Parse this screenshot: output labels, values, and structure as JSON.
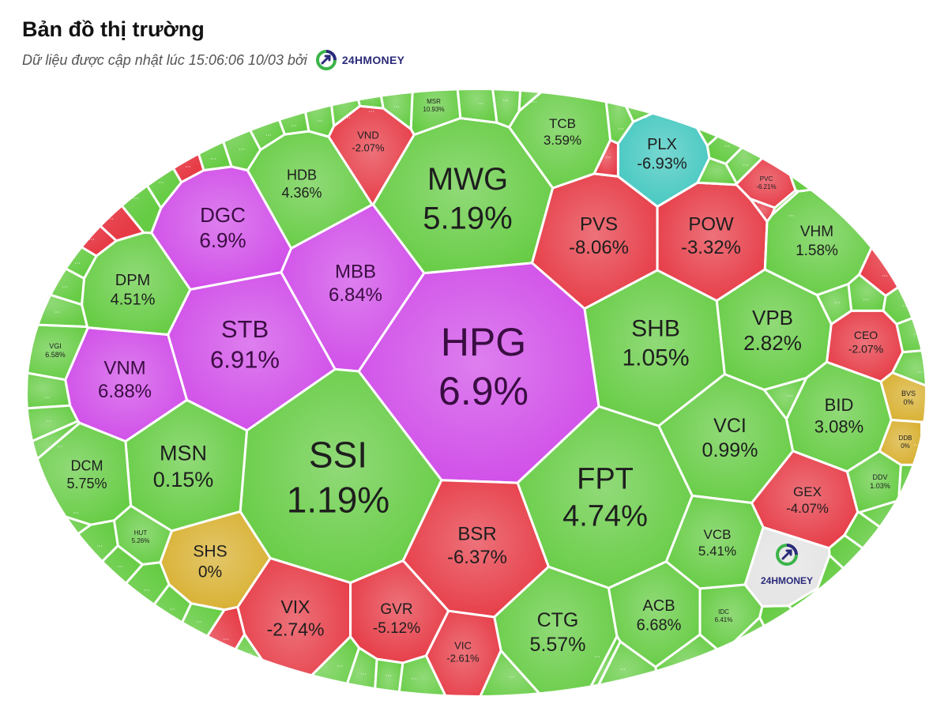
{
  "header": {
    "title": "Bản đồ thị trường",
    "subtitle": "Dữ liệu được cập nhật lúc 15:06:06 10/03 bởi",
    "logo_text": "24HMONEY"
  },
  "colors": {
    "up": "#66cc44",
    "down": "#e63b46",
    "ceiling": "#d04de8",
    "floor": "#44c8c0",
    "reference": "#d8b030",
    "logo_cell": "#e4e4e4",
    "border": "#ffffff"
  },
  "watermark_text": "24HMONEY",
  "more_label": "...",
  "chart_data": {
    "type": "treemap",
    "cells": [
      {
        "ticker": "HPG",
        "change": "6.9%",
        "status": "ceiling"
      },
      {
        "ticker": "SSI",
        "change": "1.19%",
        "status": "up"
      },
      {
        "ticker": "MWG",
        "change": "5.19%",
        "status": "up"
      },
      {
        "ticker": "FPT",
        "change": "4.74%",
        "status": "up"
      },
      {
        "ticker": "SHB",
        "change": "1.05%",
        "status": "up"
      },
      {
        "ticker": "STB",
        "change": "6.91%",
        "status": "ceiling"
      },
      {
        "ticker": "MBB",
        "change": "6.84%",
        "status": "ceiling"
      },
      {
        "ticker": "DGC",
        "change": "6.9%",
        "status": "ceiling"
      },
      {
        "ticker": "VNM",
        "change": "6.88%",
        "status": "ceiling"
      },
      {
        "ticker": "MSN",
        "change": "0.15%",
        "status": "up"
      },
      {
        "ticker": "BSR",
        "change": "-6.37%",
        "status": "down"
      },
      {
        "ticker": "PVS",
        "change": "-8.06%",
        "status": "down"
      },
      {
        "ticker": "POW",
        "change": "-3.32%",
        "status": "down"
      },
      {
        "ticker": "VPB",
        "change": "2.82%",
        "status": "up"
      },
      {
        "ticker": "VCI",
        "change": "0.99%",
        "status": "up"
      },
      {
        "ticker": "CTG",
        "change": "5.57%",
        "status": "up"
      },
      {
        "ticker": "VIX",
        "change": "-2.74%",
        "status": "down"
      },
      {
        "ticker": "HDB",
        "change": "4.36%",
        "status": "up"
      },
      {
        "ticker": "TCB",
        "change": "3.59%",
        "status": "up"
      },
      {
        "ticker": "VHM",
        "change": "1.58%",
        "status": "up"
      },
      {
        "ticker": "BID",
        "change": "3.08%",
        "status": "up"
      },
      {
        "ticker": "DPM",
        "change": "4.51%",
        "status": "up"
      },
      {
        "ticker": "DCM",
        "change": "5.75%",
        "status": "up"
      },
      {
        "ticker": "GVR",
        "change": "-5.12%",
        "status": "down"
      },
      {
        "ticker": "ACB",
        "change": "6.68%",
        "status": "up"
      },
      {
        "ticker": "VCB",
        "change": "5.41%",
        "status": "up"
      },
      {
        "ticker": "GEX",
        "change": "-4.07%",
        "status": "down"
      },
      {
        "ticker": "SHS",
        "change": "0%",
        "status": "reference"
      },
      {
        "ticker": "PLX",
        "change": "-6.93%",
        "status": "floor"
      },
      {
        "ticker": "VND",
        "change": "-2.07%",
        "status": "down"
      },
      {
        "ticker": "CEO",
        "change": "-2.07%",
        "status": "down"
      },
      {
        "ticker": "VIC",
        "change": "-2.61%",
        "status": "down"
      },
      {
        "ticker": "MSR",
        "change": "10.93%",
        "status": "up"
      },
      {
        "ticker": "PVC",
        "change": "-6.21%",
        "status": "down"
      },
      {
        "ticker": "VGI",
        "change": "6.58%",
        "status": "up"
      },
      {
        "ticker": "HUT",
        "change": "5.26%",
        "status": "up"
      },
      {
        "ticker": "BVS",
        "change": "0%",
        "status": "reference"
      },
      {
        "ticker": "DDB",
        "change": "0%",
        "status": "reference"
      },
      {
        "ticker": "DDV",
        "change": "1.03%",
        "status": "up"
      },
      {
        "ticker": "IDC",
        "change": "6.41%",
        "status": "up"
      }
    ]
  }
}
